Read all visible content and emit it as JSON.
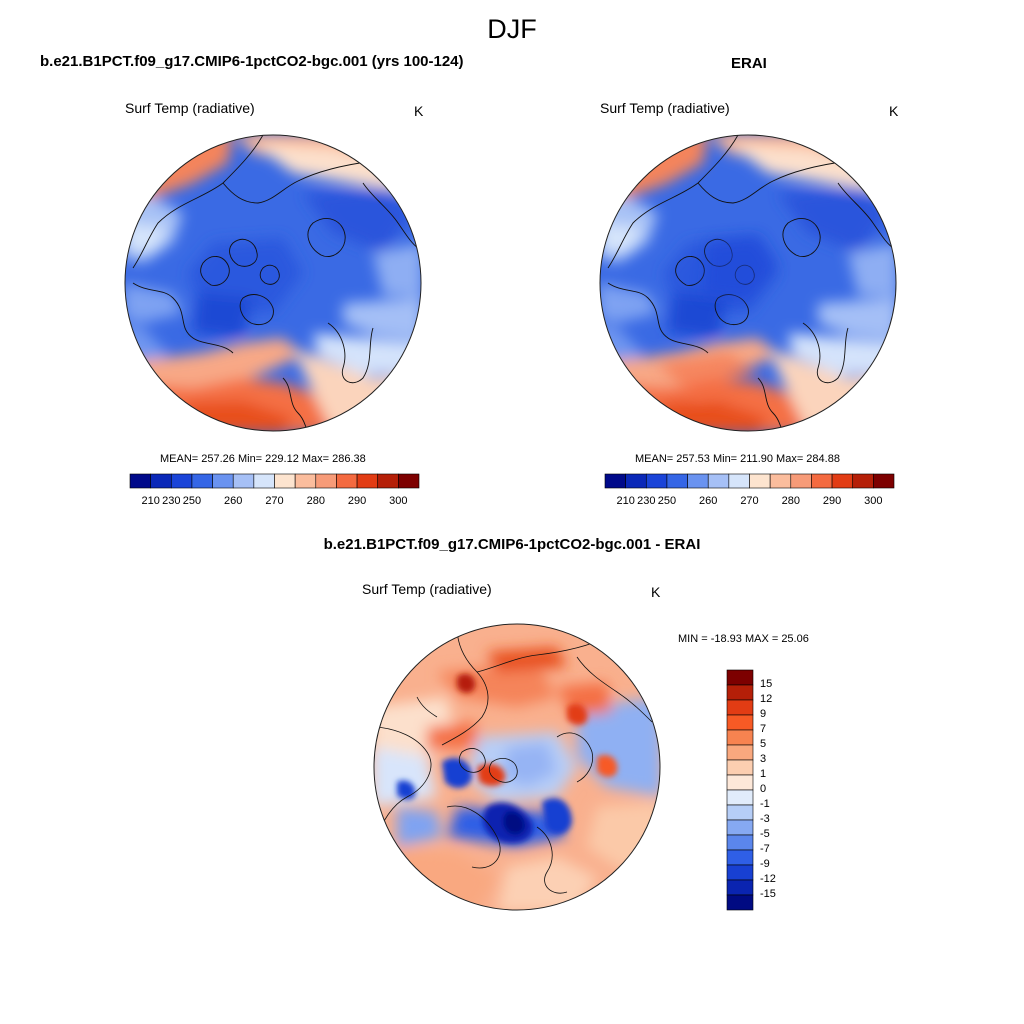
{
  "season": "DJF",
  "panels": {
    "model": {
      "title": "b.e21.B1PCT.f09_g17.CMIP6-1pctCO2-bgc.001 (yrs 100-124)",
      "variable": "Surf Temp (radiative)",
      "units": "K",
      "stats": "MEAN= 257.26  Min= 229.12  Max= 286.38"
    },
    "obs": {
      "title": "ERAI",
      "variable": "Surf Temp (radiative)",
      "units": "K",
      "stats": "MEAN= 257.53  Min= 211.90  Max= 284.88"
    },
    "diff": {
      "title": "b.e21.B1PCT.f09_g17.CMIP6-1pctCO2-bgc.001 - ERAI",
      "variable": "Surf Temp (radiative)",
      "units": "K",
      "stats": "MIN = -18.93 MAX =  25.06"
    }
  },
  "abs_colorbar": {
    "labels": [
      "210",
      "230",
      "250",
      "260",
      "270",
      "280",
      "290",
      "300"
    ],
    "colors": [
      "#000a8a",
      "#0a28b8",
      "#1a44d8",
      "#3566e6",
      "#6a93f0",
      "#a6c0f6",
      "#d6e5fb",
      "#fde4cf",
      "#fbbd9d",
      "#f79b78",
      "#f46a40",
      "#e23c14",
      "#b51f08",
      "#7d0000"
    ]
  },
  "diff_colorbar": {
    "labels": [
      "15",
      "12",
      "9",
      "7",
      "5",
      "3",
      "1",
      "0",
      "-1",
      "-3",
      "-5",
      "-7",
      "-9",
      "-12",
      "-15"
    ],
    "colors": [
      "#7d0000",
      "#b51f08",
      "#e23c14",
      "#f75a25",
      "#f78350",
      "#f9a87e",
      "#fcceb0",
      "#fde8d9",
      "#e1ecfb",
      "#b6cef7",
      "#86a9f2",
      "#5b86ec",
      "#2f5fe6",
      "#1840d2",
      "#0a24b0",
      "#000a82"
    ]
  }
}
